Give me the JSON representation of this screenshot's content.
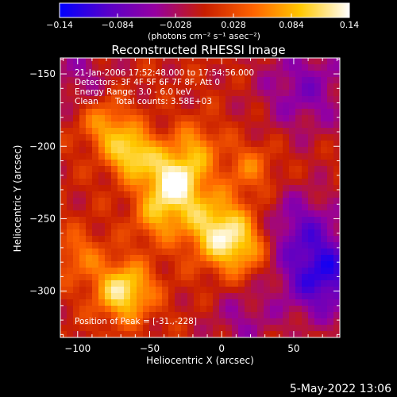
{
  "colors": {
    "background": "#000000",
    "foreground": "#ffffff",
    "colormap": [
      "#0000ff",
      "#5a00c8",
      "#9600a0",
      "#c81e00",
      "#ff6400",
      "#ffc800",
      "#ffffff"
    ]
  },
  "colorbar": {
    "min": -0.14,
    "max": 0.14,
    "tick_labels": [
      "-0.14",
      "-0.084",
      "-0.028",
      "0.028",
      "0.084",
      "0.14"
    ],
    "units": "(photons cm⁻² s⁻¹ asec⁻²)"
  },
  "chart_data": {
    "type": "heatmap",
    "title": "Reconstructed RHESSI Image",
    "xlabel": "Heliocentric X (arcsec)",
    "ylabel": "Heliocentric Y (arcsec)",
    "xlim": [
      -112,
      82
    ],
    "ylim": [
      -332,
      -139
    ],
    "x_ticks": [
      -100,
      -50,
      0,
      50
    ],
    "x_tick_labels": [
      "−100",
      "−50",
      "0",
      "50"
    ],
    "y_ticks": [
      -150,
      -200,
      -250,
      -300
    ],
    "y_tick_labels": [
      "−150",
      "−200",
      "−250",
      "−300"
    ],
    "sources": [
      {
        "x": -33,
        "y": -225,
        "amplitude": 0.14,
        "sigma": 14
      },
      {
        "x": -62,
        "y": -205,
        "amplitude": 0.11,
        "sigma": 12
      },
      {
        "x": -80,
        "y": -185,
        "amplitude": 0.07,
        "sigma": 12
      },
      {
        "x": -5,
        "y": -255,
        "amplitude": 0.1,
        "sigma": 16
      },
      {
        "x": 12,
        "y": -270,
        "amplitude": 0.08,
        "sigma": 14
      },
      {
        "x": -18,
        "y": -200,
        "amplitude": 0.06,
        "sigma": 12
      },
      {
        "x": -68,
        "y": -300,
        "amplitude": 0.12,
        "sigma": 14
      },
      {
        "x": -100,
        "y": -275,
        "amplitude": 0.05,
        "sigma": 12
      },
      {
        "x": -45,
        "y": -250,
        "amplitude": 0.06,
        "sigma": 12
      },
      {
        "x": 20,
        "y": -215,
        "amplitude": 0.05,
        "sigma": 12
      },
      {
        "x": 58,
        "y": -160,
        "amplitude": -0.06,
        "sigma": 22
      },
      {
        "x": 70,
        "y": -290,
        "amplitude": -0.11,
        "sigma": 20
      },
      {
        "x": 55,
        "y": -255,
        "amplitude": -0.06,
        "sigma": 18
      },
      {
        "x": -100,
        "y": -150,
        "amplitude": -0.04,
        "sigma": 16
      },
      {
        "x": 15,
        "y": -320,
        "amplitude": -0.04,
        "sigma": 16
      }
    ],
    "peak_marker": {
      "x": -31,
      "y": -228
    }
  },
  "info": {
    "time_range": "21-Jan-2006 17:52:48.000 to 17:54:56.000",
    "detectors": "Detectors: 3F 4F 5F 6F 7F 8F, Att 0",
    "energy_range": "Energy Range: 3.0 - 6.0 keV",
    "algorithm": "Clean",
    "total_counts": "Total counts: 3.58E+03",
    "peak_position": "Position of Peak = [-31.,-228]"
  },
  "footer": {
    "date": "5-May-2022 13:06"
  }
}
